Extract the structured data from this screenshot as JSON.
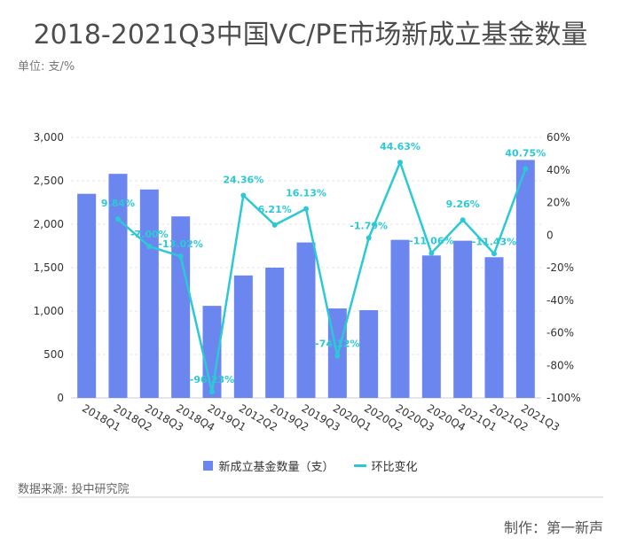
{
  "title": "2018-2021Q3中国VC/PE市场新成立基金数量",
  "unit_label": "单位: 支/%",
  "source": "数据来源: 投中研究院",
  "maker": "制作：第一新声",
  "colors": {
    "bar": "#6b86ef",
    "line": "#2cc9d4",
    "grid": "#e6e6e6"
  },
  "chart_data": {
    "type": "bar",
    "categories": [
      "2018Q1",
      "2018Q2",
      "2018Q3",
      "2018Q4",
      "2019Q1",
      "2012Q2",
      "2019Q2",
      "2019Q3",
      "2020Q1",
      "2020Q2",
      "2020Q3",
      "2020Q4",
      "2021Q1",
      "2021Q2",
      "2021Q3"
    ],
    "series": [
      {
        "name": "新成立基金数量（支）",
        "type": "bar",
        "axis": "left",
        "values": [
          2350,
          2580,
          2400,
          2090,
          1060,
          1410,
          1500,
          1790,
          1030,
          1010,
          1820,
          1640,
          1810,
          1620,
          2740
        ]
      },
      {
        "name": "环比变化",
        "type": "line",
        "axis": "right",
        "values": [
          null,
          9.84,
          -7.0,
          -13.02,
          -96.23,
          24.36,
          6.21,
          16.13,
          -74.12,
          -1.79,
          44.63,
          -11.06,
          9.26,
          -11.43,
          40.75
        ],
        "labels": [
          "",
          "9.84%",
          "-7.00%",
          "-13.02%",
          "-96.23%",
          "24.36%",
          "6.21%",
          "16.13%",
          "-74.12%",
          "-1.79%",
          "44.63%",
          "-11.06%",
          "9.26%",
          "-11.43%",
          "40.75%"
        ]
      }
    ],
    "y_left": {
      "min": 0,
      "max": 3000,
      "ticks": [
        "0",
        "500",
        "1,000",
        "1,500",
        "2,000",
        "2,500",
        "3,000"
      ]
    },
    "y_right": {
      "min": -100,
      "max": 60,
      "ticks": [
        "-100%",
        "-80%",
        "-60%",
        "-40%",
        "-20%",
        "0",
        "20%",
        "40%",
        "60%"
      ]
    },
    "grid": true,
    "legend_position": "bottom"
  }
}
